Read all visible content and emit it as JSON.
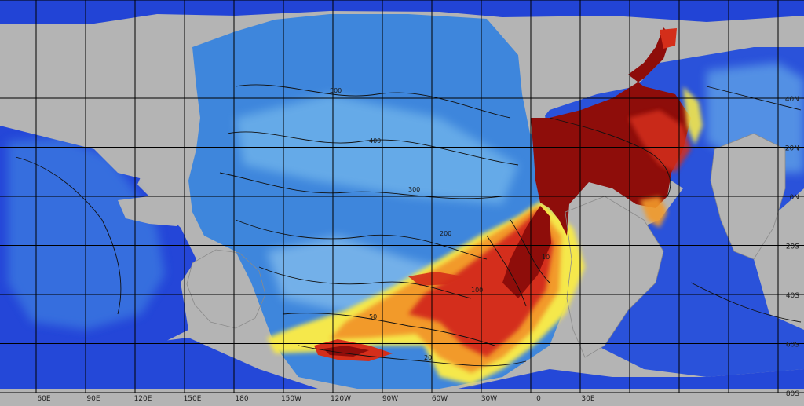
{
  "colors": {
    "land": "#b4b4b4",
    "deep_blue": "#1f3bd6",
    "mid_blue": "#3c82dc",
    "light_blue": "#7fc1ef",
    "pale_blue": "#c4e6f8",
    "yellow": "#f4e64a",
    "orange": "#f39a2a",
    "red": "#d32c1a",
    "dark_red": "#8e0d0a",
    "grid": "#000000",
    "contour": "#111111",
    "coast": "#8a8a8a"
  },
  "latitude_labels": [
    "40N",
    "20N",
    "0N",
    "20S",
    "40S",
    "60S",
    "80S"
  ],
  "longitude_labels": [
    "60E",
    "90E",
    "120E",
    "150E",
    "180",
    "150W",
    "120W",
    "90W",
    "60W",
    "30W",
    "0",
    "30E"
  ],
  "contour_labels": [
    "500",
    "400",
    "300",
    "200",
    "100",
    "50",
    "20",
    "10"
  ]
}
